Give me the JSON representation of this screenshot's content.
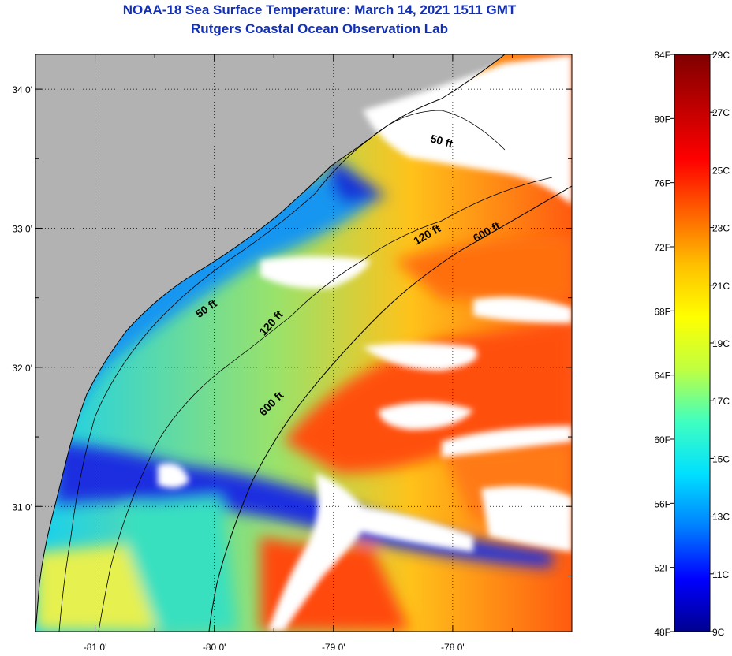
{
  "title": {
    "line1": "NOAA-18 Sea Surface Temperature:  March 14, 2021 1511 GMT",
    "line2": "Rutgers Coastal Ocean Observation Lab"
  },
  "map": {
    "lon_range": [
      -81.5,
      -77.0
    ],
    "lat_range": [
      30.1,
      34.25
    ],
    "lon_ticks": [
      {
        "value": -81,
        "label": "-81 0'"
      },
      {
        "value": -80,
        "label": "-80 0'"
      },
      {
        "value": -79,
        "label": "-79 0'"
      },
      {
        "value": -78,
        "label": "-78 0'"
      }
    ],
    "lat_ticks": [
      {
        "value": 34,
        "label": "34 0'"
      },
      {
        "value": 33,
        "label": "33 0'"
      },
      {
        "value": 32,
        "label": "32 0'"
      },
      {
        "value": 31,
        "label": "31 0'"
      }
    ],
    "contour_labels": [
      {
        "text": "50 ft",
        "lon": -78.1,
        "lat": 33.6,
        "angle": 15
      },
      {
        "text": "120 ft",
        "lon": -78.2,
        "lat": 32.93,
        "angle": -30
      },
      {
        "text": "600 ft",
        "lon": -77.7,
        "lat": 32.95,
        "angle": -30
      },
      {
        "text": "50 ft",
        "lon": -80.05,
        "lat": 32.4,
        "angle": -35
      },
      {
        "text": "120 ft",
        "lon": -79.5,
        "lat": 32.3,
        "angle": -48
      },
      {
        "text": "600 ft",
        "lon": -79.5,
        "lat": 31.72,
        "angle": -45
      }
    ],
    "colors": {
      "land": "#b2b2b2",
      "cloud": "#ffffff",
      "grid": "#000000"
    }
  },
  "colorbar": {
    "f_labels": [
      "84F",
      "80F",
      "76F",
      "72F",
      "68F",
      "64F",
      "60F",
      "56F",
      "52F",
      "48F"
    ],
    "c_labels": [
      "29C",
      "27C",
      "25C",
      "23C",
      "21C",
      "19C",
      "17C",
      "15C",
      "13C",
      "11C",
      "9C"
    ],
    "c_range": [
      9,
      29
    ],
    "gradient": [
      "#00008f",
      "#0000ff",
      "#0080ff",
      "#00e0ff",
      "#40ffbf",
      "#c0ff40",
      "#ffff00",
      "#ffbf00",
      "#ff6000",
      "#ff0000",
      "#bf0000",
      "#800000"
    ]
  }
}
